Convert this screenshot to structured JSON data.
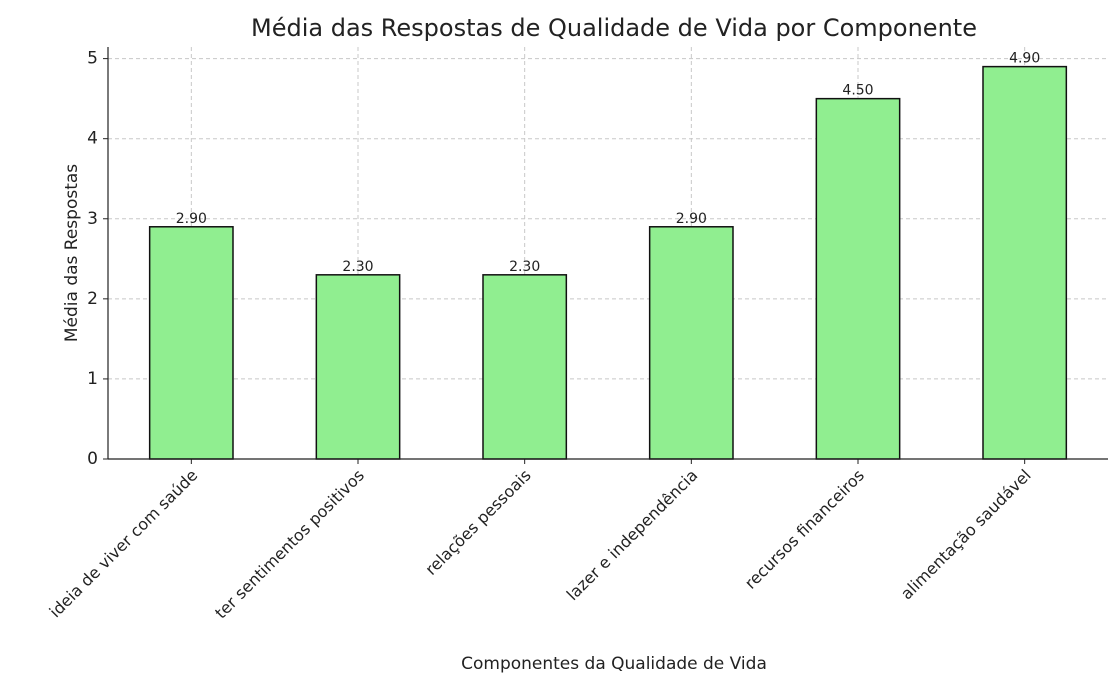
{
  "chart_data": {
    "type": "bar",
    "title": "Média das Respostas de Qualidade de Vida por Componente",
    "xlabel": "Componentes da Qualidade de Vida",
    "ylabel": "Média das Respostas",
    "categories": [
      "ideia de viver com saúde",
      "ter sentimentos positivos",
      "relações pessoais",
      "lazer e independência",
      "recursos financeiros",
      "alimentação saudável"
    ],
    "values": [
      2.9,
      2.3,
      2.3,
      2.9,
      4.5,
      4.9
    ],
    "value_labels": [
      "2.90",
      "2.30",
      "2.30",
      "2.90",
      "4.50",
      "4.90"
    ],
    "color": "#90ee90",
    "ylim": [
      0,
      5.145
    ],
    "yticks": [
      0,
      1,
      2,
      3,
      4,
      5
    ],
    "grid": true
  }
}
